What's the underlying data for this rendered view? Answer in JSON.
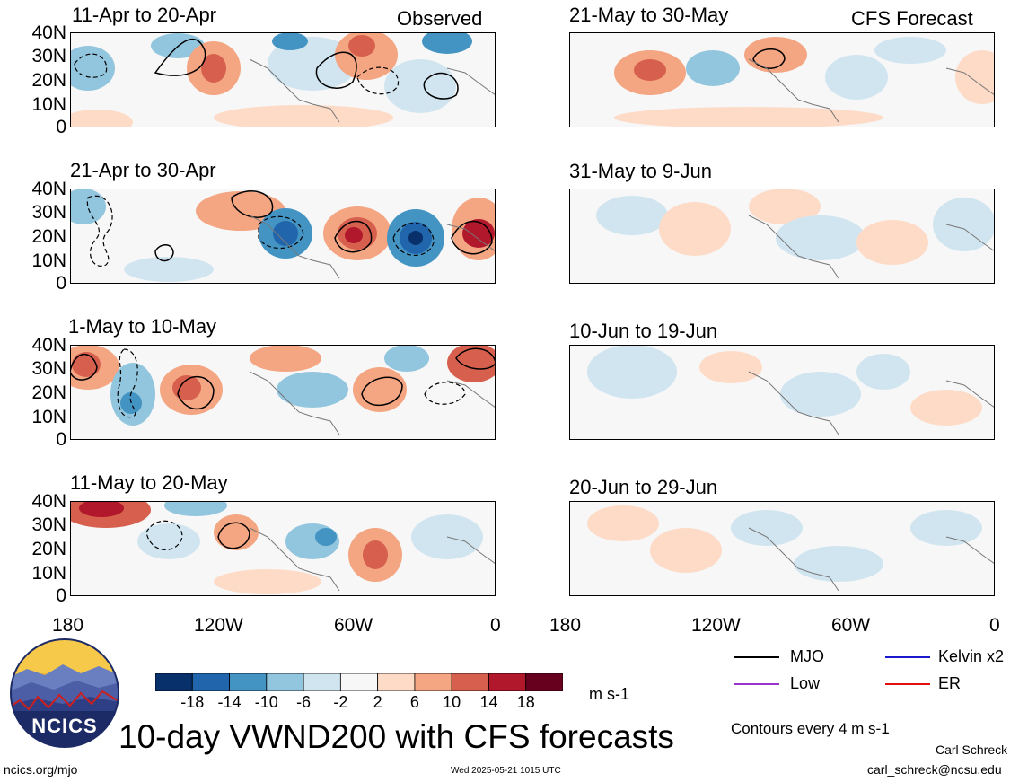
{
  "observed_label": "Observed",
  "forecast_label": "CFS Forecast",
  "lat_ticks": [
    "40N",
    "30N",
    "20N",
    "10N",
    "0"
  ],
  "lon_ticks": [
    "180",
    "120W",
    "60W",
    "0"
  ],
  "panels_left": [
    {
      "title": "11-Apr to 20-Apr"
    },
    {
      "title": "21-Apr to 30-Apr"
    },
    {
      "title": "1-May to 10-May"
    },
    {
      "title": "11-May to 20-May"
    }
  ],
  "panels_right": [
    {
      "title": "21-May to 30-May"
    },
    {
      "title": "31-May to 9-Jun"
    },
    {
      "title": "10-Jun to 19-Jun"
    },
    {
      "title": "20-Jun to 29-Jun"
    }
  ],
  "colorbar": {
    "labels": [
      "-18",
      "-14",
      "-10",
      "-6",
      "-2",
      "2",
      "6",
      "10",
      "14",
      "18"
    ],
    "colors": [
      "#08306b",
      "#2166ac",
      "#4393c3",
      "#92c5de",
      "#d1e5f0",
      "#f7f7f7",
      "#fddbc7",
      "#f4a582",
      "#d6604d",
      "#b2182b",
      "#67001f"
    ],
    "unit": "m s-1"
  },
  "legend": {
    "mjo": "MJO",
    "kelvin": "Kelvin x2",
    "low": "Low",
    "er": "ER",
    "colors": {
      "mjo": "#000000",
      "kelvin": "#1a1acc",
      "low": "#9933cc",
      "er": "#e01010"
    }
  },
  "contour_note": "Contours every 4 m s-1",
  "main_title": "10-day VWND200 with CFS forecasts",
  "logo_text": "NCICS",
  "footer": {
    "url": "ncics.org/mjo",
    "timestamp": "Wed 2025-05-21 1015 UTC",
    "author": "Carl Schreck",
    "email": "carl_schreck@ncsu.edu"
  }
}
